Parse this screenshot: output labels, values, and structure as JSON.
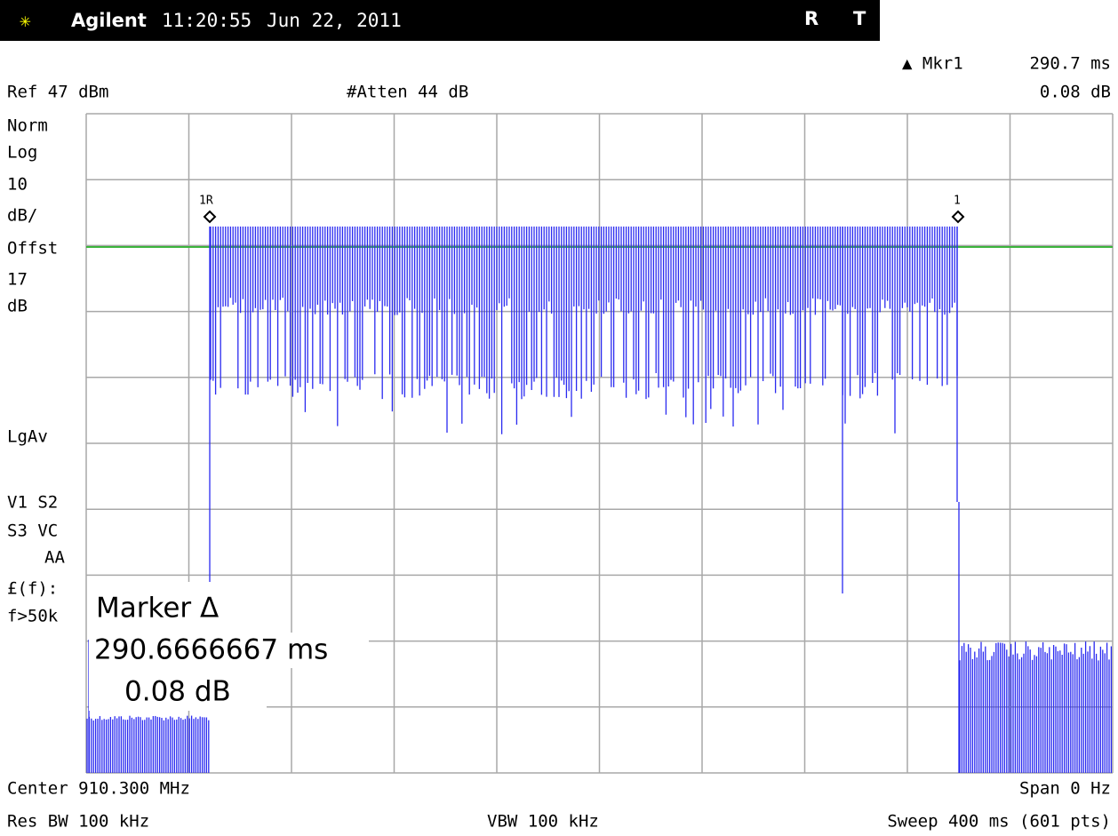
{
  "header": {
    "brand": "Agilent",
    "time": "11:20:55",
    "date": "Jun 22, 2011",
    "flags": [
      "R",
      "T"
    ]
  },
  "marker_readout": {
    "label": "▲ Mkr1",
    "time": "290.7 ms",
    "amplitude": "0.08 dB"
  },
  "ref_level": "Ref 47 dBm",
  "attenuation": "#Atten 44 dB",
  "left_panel": [
    "Norm",
    "Log",
    "10",
    "dB/",
    "Offst",
    "17",
    "dB",
    "LgAv",
    "V1  S2",
    "S3  VC",
    "AA",
    "£(f):",
    "f>50k"
  ],
  "markers": [
    {
      "label": "1R"
    },
    {
      "label": "1"
    }
  ],
  "marker_box": {
    "title": "Marker Δ",
    "time": "290.6666667 ms",
    "amplitude": "0.08 dB"
  },
  "footer": {
    "center": "Center 910.300 MHz",
    "span": "Span 0 Hz",
    "rbw": "Res BW 100 kHz",
    "vbw": "VBW 100 kHz",
    "sweep": "Sweep 400 ms (601 pts)"
  }
}
